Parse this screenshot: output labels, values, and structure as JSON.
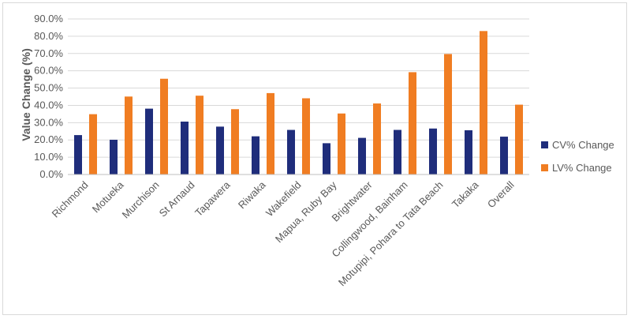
{
  "chart_data": {
    "type": "bar",
    "title": "",
    "xlabel": "",
    "ylabel": "Value Change (%)",
    "ylim": [
      0,
      90
    ],
    "y_tick_step": 10,
    "y_tick_format": "percent_one_decimal",
    "grid": true,
    "legend_position": "right",
    "categories": [
      "Richmond",
      "Motueka",
      "Murchison",
      "St Arnaud",
      "Tapawera",
      "Riwaka",
      "Wakefield",
      "Mapua, Ruby Bay",
      "Brightwater",
      "Collingwood, Bainham",
      "Motupipi, Pohara to Tata Beach",
      "Takaka",
      "Overall"
    ],
    "series": [
      {
        "name": "CV% Change",
        "color": "#1f2d7b",
        "values": [
          22.8,
          20.1,
          38.1,
          30.6,
          27.7,
          22.1,
          25.8,
          18.1,
          21.2,
          25.8,
          26.6,
          25.6,
          21.9
        ]
      },
      {
        "name": "LV% Change",
        "color": "#f07d22",
        "values": [
          34.9,
          45.1,
          55.4,
          45.6,
          37.8,
          47.1,
          44.1,
          35.3,
          41.1,
          59.2,
          69.7,
          83.0,
          40.4
        ]
      }
    ]
  }
}
